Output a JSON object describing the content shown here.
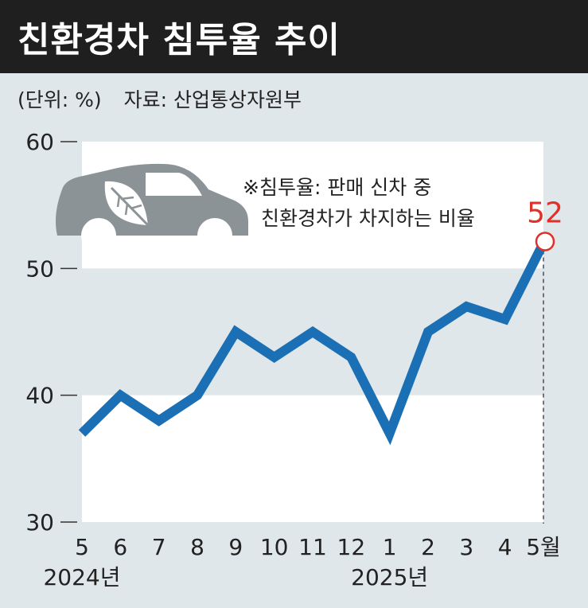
{
  "title": "친환경차 침투율 추이",
  "unit": "(단위: %)",
  "source": "자료: 산업통상자원부",
  "note": {
    "line1": "※침투율: 판매 신차 중",
    "line2": "친환경차가 차지하는 비율"
  },
  "icon": "eco-car-leaf-icon",
  "colors": {
    "line": "#1b6fb5",
    "highlight": "#e0302a",
    "background": "#dfe7ea",
    "band": "#ffffff",
    "title_bar": "#1f1f1f"
  },
  "chart_data": {
    "type": "line",
    "categories": [
      "5",
      "6",
      "7",
      "8",
      "9",
      "10",
      "11",
      "12",
      "1",
      "2",
      "3",
      "4",
      "5월"
    ],
    "year_labels": [
      {
        "label": "2024년",
        "at_category": 0
      },
      {
        "label": "2025년",
        "at_category": 8
      }
    ],
    "values": [
      37,
      40,
      38,
      40,
      45,
      43,
      45,
      43,
      37,
      45,
      47,
      46,
      52
    ],
    "ylim": [
      30,
      60
    ],
    "yticks": [
      "30",
      "40",
      "50",
      "60"
    ],
    "highlight": {
      "index": 12,
      "label": "52"
    },
    "grid": false
  }
}
